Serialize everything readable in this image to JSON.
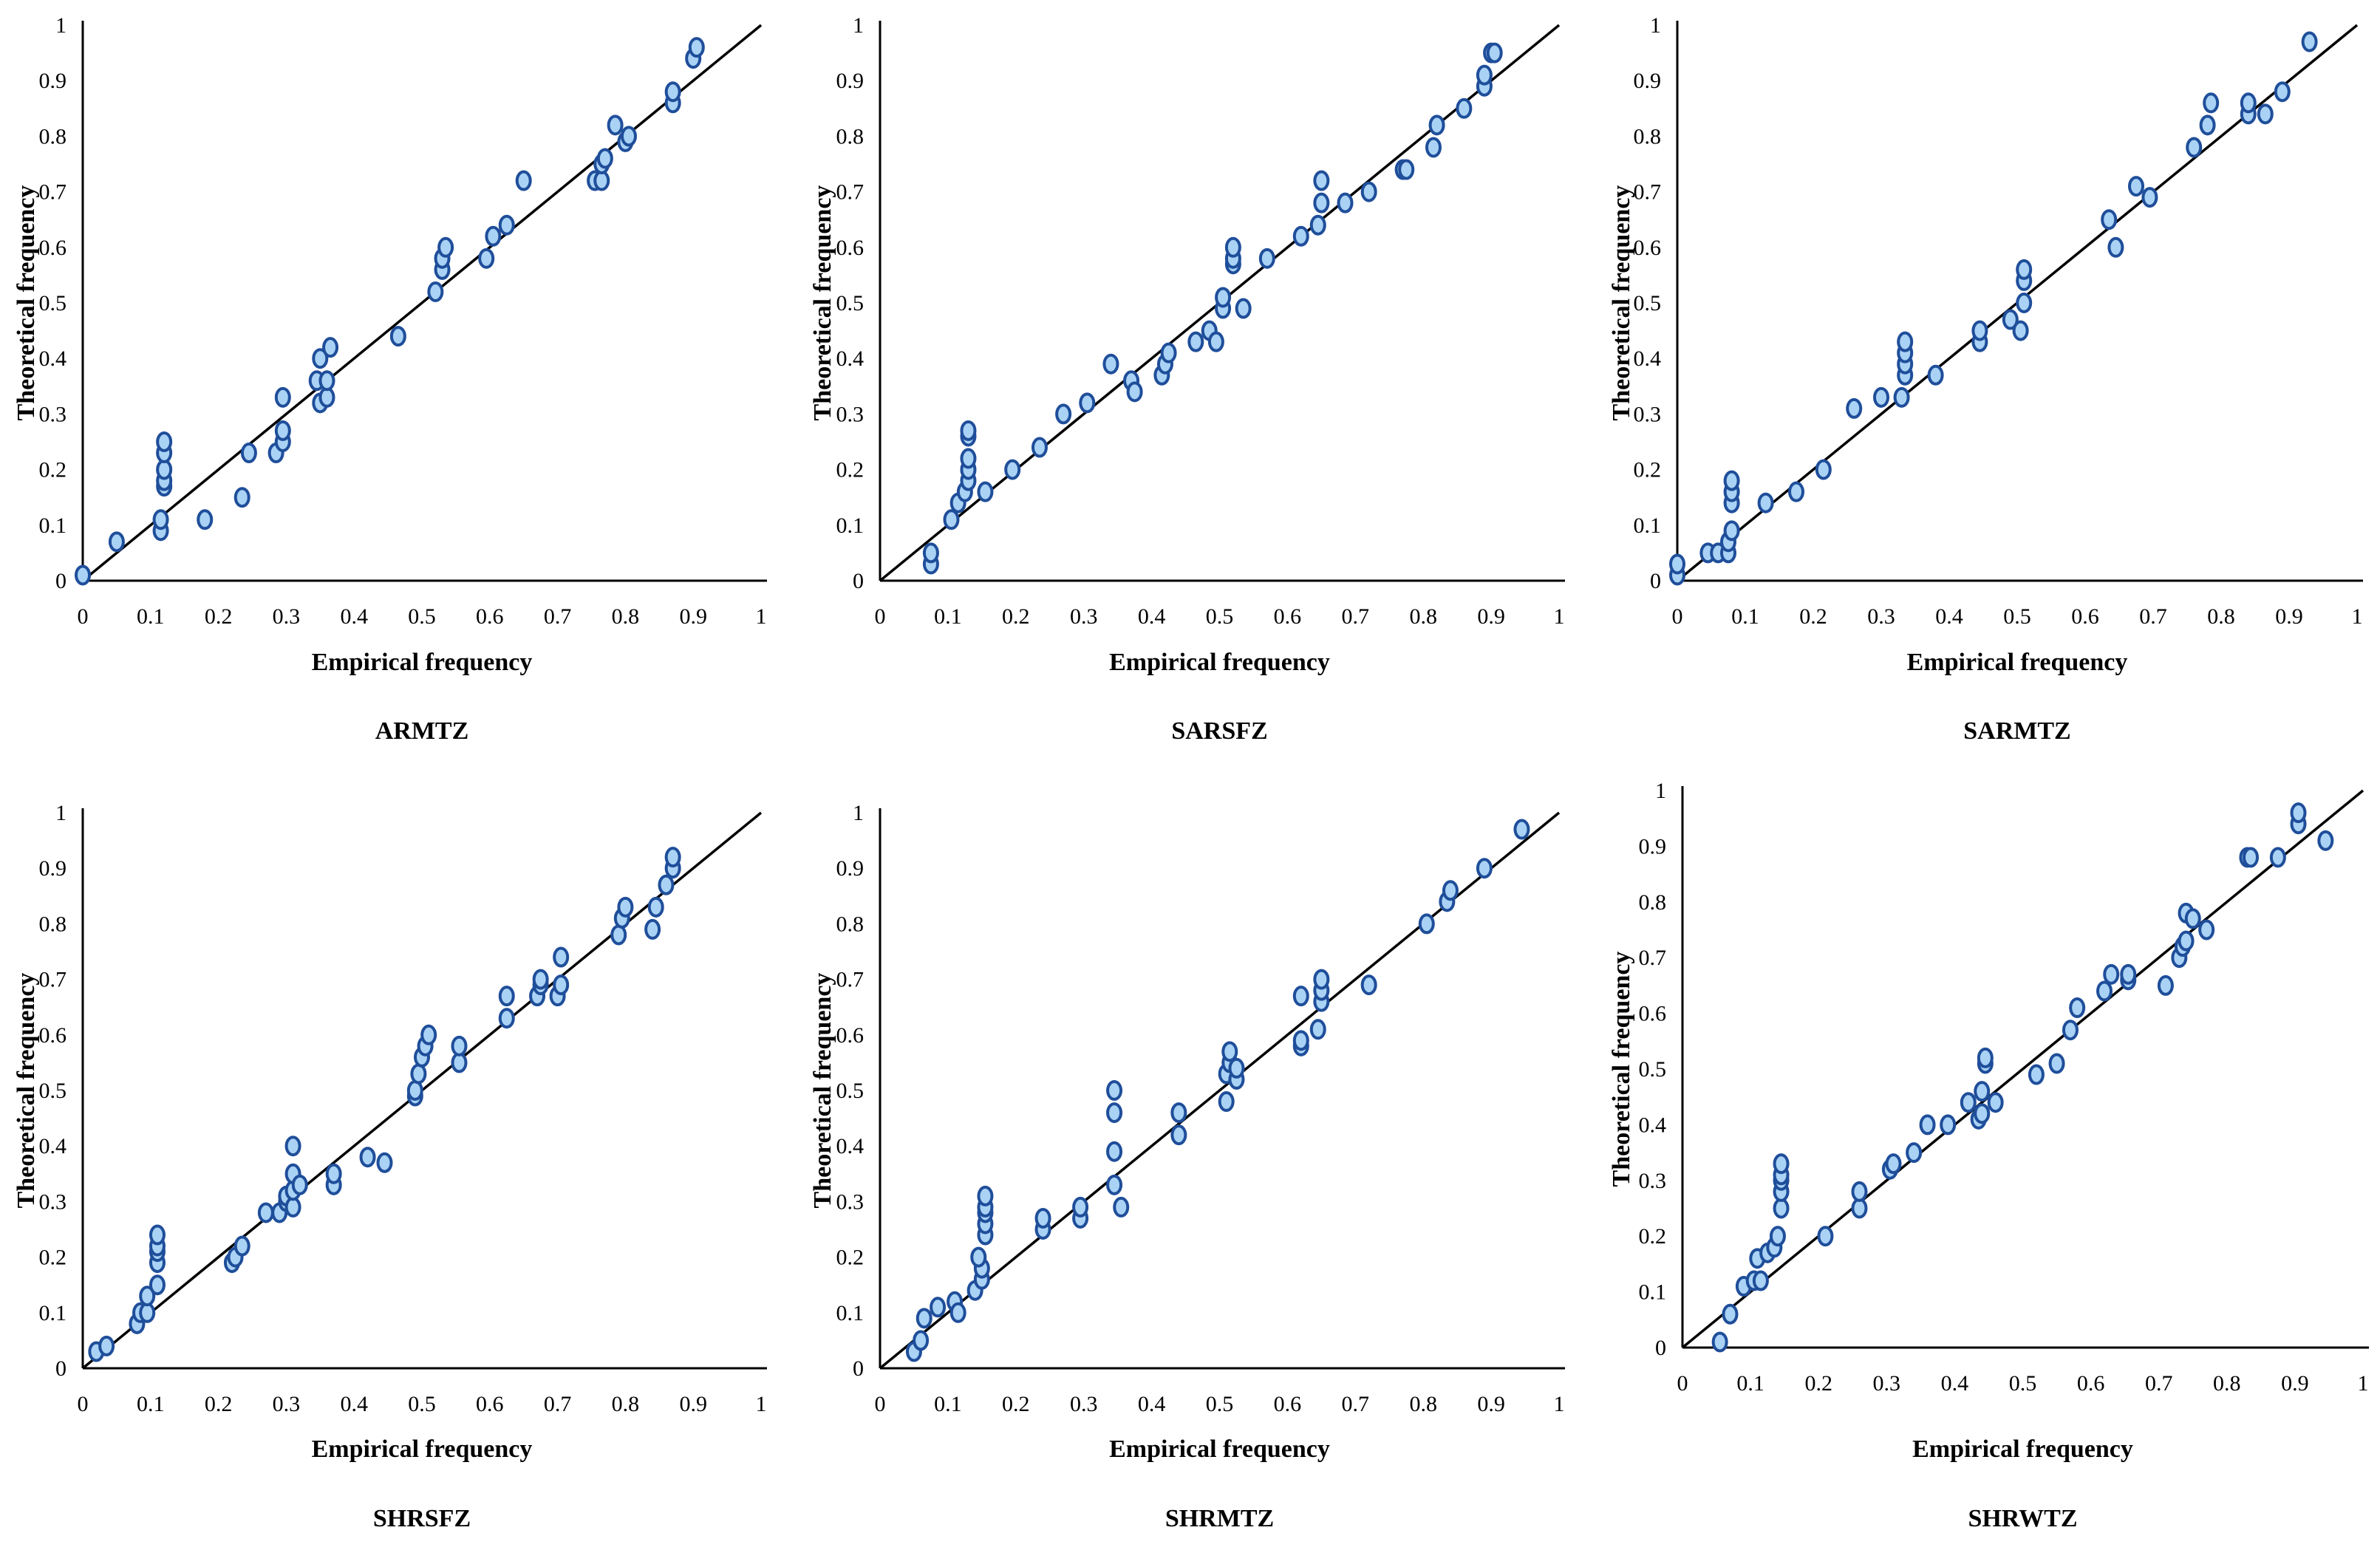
{
  "figure": {
    "shared_xlabel": "Empirical frequency",
    "shared_ylabel": "Theoretical frequency"
  },
  "chart_data": [
    {
      "type": "scatter",
      "title": "ARMTZ",
      "xlabel": "Empirical frequency",
      "ylabel": "Theoretical frequency",
      "xlim": [
        0,
        1
      ],
      "ylim": [
        0,
        1
      ],
      "xticks": [
        "0",
        "0.1",
        "0.2",
        "0.3",
        "0.4",
        "0.5",
        "0.6",
        "0.7",
        "0.8",
        "0.9",
        "1"
      ],
      "yticks": [
        "0",
        "0.1",
        "0.2",
        "0.3",
        "0.4",
        "0.5",
        "0.6",
        "0.7",
        "0.8",
        "0.9",
        "1"
      ],
      "reference_line": "y = x",
      "points": [
        [
          0.0,
          0.01
        ],
        [
          0.05,
          0.07
        ],
        [
          0.115,
          0.09
        ],
        [
          0.115,
          0.11
        ],
        [
          0.12,
          0.17
        ],
        [
          0.12,
          0.18
        ],
        [
          0.12,
          0.2
        ],
        [
          0.12,
          0.23
        ],
        [
          0.12,
          0.25
        ],
        [
          0.18,
          0.11
        ],
        [
          0.235,
          0.15
        ],
        [
          0.245,
          0.23
        ],
        [
          0.285,
          0.23
        ],
        [
          0.295,
          0.25
        ],
        [
          0.295,
          0.27
        ],
        [
          0.295,
          0.33
        ],
        [
          0.345,
          0.36
        ],
        [
          0.35,
          0.32
        ],
        [
          0.35,
          0.4
        ],
        [
          0.36,
          0.33
        ],
        [
          0.36,
          0.36
        ],
        [
          0.365,
          0.42
        ],
        [
          0.465,
          0.44
        ],
        [
          0.52,
          0.52
        ],
        [
          0.53,
          0.56
        ],
        [
          0.53,
          0.58
        ],
        [
          0.535,
          0.6
        ],
        [
          0.595,
          0.58
        ],
        [
          0.605,
          0.62
        ],
        [
          0.625,
          0.64
        ],
        [
          0.65,
          0.72
        ],
        [
          0.755,
          0.72
        ],
        [
          0.765,
          0.72
        ],
        [
          0.765,
          0.75
        ],
        [
          0.77,
          0.76
        ],
        [
          0.785,
          0.82
        ],
        [
          0.8,
          0.79
        ],
        [
          0.805,
          0.8
        ],
        [
          0.87,
          0.86
        ],
        [
          0.87,
          0.88
        ],
        [
          0.9,
          0.94
        ],
        [
          0.905,
          0.96
        ]
      ]
    },
    {
      "type": "scatter",
      "title": "SARSFZ",
      "xlabel": "Empirical frequency",
      "ylabel": "Theoretical frequency",
      "xlim": [
        0,
        1
      ],
      "ylim": [
        0,
        1
      ],
      "xticks": [
        "0",
        "0.1",
        "0.2",
        "0.3",
        "0.4",
        "0.5",
        "0.6",
        "0.7",
        "0.8",
        "0.9",
        "1"
      ],
      "yticks": [
        "0",
        "0.1",
        "0.2",
        "0.3",
        "0.4",
        "0.5",
        "0.6",
        "0.7",
        "0.8",
        "0.9",
        "1"
      ],
      "reference_line": "y = x",
      "points": [
        [
          0.075,
          0.03
        ],
        [
          0.075,
          0.05
        ],
        [
          0.105,
          0.11
        ],
        [
          0.115,
          0.14
        ],
        [
          0.125,
          0.16
        ],
        [
          0.13,
          0.18
        ],
        [
          0.13,
          0.2
        ],
        [
          0.13,
          0.22
        ],
        [
          0.13,
          0.26
        ],
        [
          0.13,
          0.27
        ],
        [
          0.155,
          0.16
        ],
        [
          0.195,
          0.2
        ],
        [
          0.235,
          0.24
        ],
        [
          0.27,
          0.3
        ],
        [
          0.305,
          0.32
        ],
        [
          0.34,
          0.39
        ],
        [
          0.37,
          0.36
        ],
        [
          0.375,
          0.34
        ],
        [
          0.415,
          0.37
        ],
        [
          0.42,
          0.39
        ],
        [
          0.425,
          0.41
        ],
        [
          0.465,
          0.43
        ],
        [
          0.485,
          0.45
        ],
        [
          0.495,
          0.43
        ],
        [
          0.505,
          0.49
        ],
        [
          0.505,
          0.51
        ],
        [
          0.52,
          0.57
        ],
        [
          0.52,
          0.58
        ],
        [
          0.52,
          0.6
        ],
        [
          0.535,
          0.49
        ],
        [
          0.57,
          0.58
        ],
        [
          0.62,
          0.62
        ],
        [
          0.645,
          0.64
        ],
        [
          0.65,
          0.68
        ],
        [
          0.65,
          0.72
        ],
        [
          0.685,
          0.68
        ],
        [
          0.72,
          0.7
        ],
        [
          0.77,
          0.74
        ],
        [
          0.775,
          0.74
        ],
        [
          0.815,
          0.78
        ],
        [
          0.82,
          0.82
        ],
        [
          0.86,
          0.85
        ],
        [
          0.89,
          0.89
        ],
        [
          0.89,
          0.91
        ],
        [
          0.9,
          0.95
        ],
        [
          0.905,
          0.95
        ]
      ]
    },
    {
      "type": "scatter",
      "title": "SARMTZ",
      "xlabel": "Empirical frequency",
      "ylabel": "Theoretical frequency",
      "xlim": [
        0,
        1
      ],
      "ylim": [
        0,
        1
      ],
      "xticks": [
        "0",
        "0.1",
        "0.2",
        "0.3",
        "0.4",
        "0.5",
        "0.6",
        "0.7",
        "0.8",
        "0.9",
        "1"
      ],
      "yticks": [
        "0",
        "0.1",
        "0.2",
        "0.3",
        "0.4",
        "0.5",
        "0.6",
        "0.7",
        "0.8",
        "0.9",
        "1"
      ],
      "reference_line": "y = x",
      "points": [
        [
          0.0,
          0.01
        ],
        [
          0.0,
          0.03
        ],
        [
          0.045,
          0.05
        ],
        [
          0.06,
          0.05
        ],
        [
          0.075,
          0.05
        ],
        [
          0.075,
          0.07
        ],
        [
          0.08,
          0.09
        ],
        [
          0.08,
          0.14
        ],
        [
          0.08,
          0.16
        ],
        [
          0.08,
          0.18
        ],
        [
          0.13,
          0.14
        ],
        [
          0.175,
          0.16
        ],
        [
          0.215,
          0.2
        ],
        [
          0.26,
          0.31
        ],
        [
          0.3,
          0.33
        ],
        [
          0.33,
          0.33
        ],
        [
          0.335,
          0.37
        ],
        [
          0.335,
          0.39
        ],
        [
          0.335,
          0.41
        ],
        [
          0.335,
          0.43
        ],
        [
          0.38,
          0.37
        ],
        [
          0.445,
          0.43
        ],
        [
          0.445,
          0.45
        ],
        [
          0.49,
          0.47
        ],
        [
          0.505,
          0.45
        ],
        [
          0.51,
          0.5
        ],
        [
          0.51,
          0.54
        ],
        [
          0.51,
          0.56
        ],
        [
          0.635,
          0.65
        ],
        [
          0.645,
          0.6
        ],
        [
          0.675,
          0.71
        ],
        [
          0.695,
          0.69
        ],
        [
          0.76,
          0.78
        ],
        [
          0.78,
          0.82
        ],
        [
          0.785,
          0.86
        ],
        [
          0.84,
          0.84
        ],
        [
          0.84,
          0.86
        ],
        [
          0.865,
          0.84
        ],
        [
          0.89,
          0.88
        ],
        [
          0.93,
          0.97
        ]
      ]
    },
    {
      "type": "scatter",
      "title": "SHRSFZ",
      "xlabel": "Empirical frequency",
      "ylabel": "Theoretical frequency",
      "xlim": [
        0,
        1
      ],
      "ylim": [
        0,
        1
      ],
      "xticks": [
        "0",
        "0.1",
        "0.2",
        "0.3",
        "0.4",
        "0.5",
        "0.6",
        "0.7",
        "0.8",
        "0.9",
        "1"
      ],
      "yticks": [
        "0",
        "0.1",
        "0.2",
        "0.3",
        "0.4",
        "0.5",
        "0.6",
        "0.7",
        "0.8",
        "0.9",
        "1"
      ],
      "reference_line": "y = x",
      "points": [
        [
          0.02,
          0.03
        ],
        [
          0.035,
          0.04
        ],
        [
          0.08,
          0.08
        ],
        [
          0.085,
          0.1
        ],
        [
          0.095,
          0.1
        ],
        [
          0.095,
          0.13
        ],
        [
          0.11,
          0.15
        ],
        [
          0.11,
          0.19
        ],
        [
          0.11,
          0.21
        ],
        [
          0.11,
          0.22
        ],
        [
          0.11,
          0.24
        ],
        [
          0.22,
          0.19
        ],
        [
          0.225,
          0.2
        ],
        [
          0.235,
          0.22
        ],
        [
          0.27,
          0.28
        ],
        [
          0.29,
          0.28
        ],
        [
          0.3,
          0.3
        ],
        [
          0.3,
          0.31
        ],
        [
          0.31,
          0.29
        ],
        [
          0.31,
          0.32
        ],
        [
          0.31,
          0.35
        ],
        [
          0.31,
          0.4
        ],
        [
          0.32,
          0.33
        ],
        [
          0.37,
          0.33
        ],
        [
          0.37,
          0.35
        ],
        [
          0.42,
          0.38
        ],
        [
          0.445,
          0.37
        ],
        [
          0.49,
          0.49
        ],
        [
          0.49,
          0.5
        ],
        [
          0.495,
          0.53
        ],
        [
          0.5,
          0.56
        ],
        [
          0.505,
          0.58
        ],
        [
          0.51,
          0.6
        ],
        [
          0.555,
          0.55
        ],
        [
          0.555,
          0.58
        ],
        [
          0.625,
          0.63
        ],
        [
          0.625,
          0.67
        ],
        [
          0.67,
          0.67
        ],
        [
          0.675,
          0.69
        ],
        [
          0.675,
          0.7
        ],
        [
          0.7,
          0.67
        ],
        [
          0.705,
          0.69
        ],
        [
          0.705,
          0.74
        ],
        [
          0.79,
          0.78
        ],
        [
          0.795,
          0.81
        ],
        [
          0.8,
          0.83
        ],
        [
          0.84,
          0.79
        ],
        [
          0.845,
          0.83
        ],
        [
          0.86,
          0.87
        ],
        [
          0.87,
          0.9
        ],
        [
          0.87,
          0.92
        ]
      ]
    },
    {
      "type": "scatter",
      "title": "SHRMTZ",
      "xlabel": "Empirical frequency",
      "ylabel": "Theoretical frequency",
      "xlim": [
        0,
        1
      ],
      "ylim": [
        0,
        1
      ],
      "xticks": [
        "0",
        "0.1",
        "0.2",
        "0.3",
        "0.4",
        "0.5",
        "0.6",
        "0.7",
        "0.8",
        "0.9",
        "1"
      ],
      "yticks": [
        "0",
        "0.1",
        "0.2",
        "0.3",
        "0.4",
        "0.5",
        "0.6",
        "0.7",
        "0.8",
        "0.9",
        "1"
      ],
      "reference_line": "y = x",
      "points": [
        [
          0.05,
          0.03
        ],
        [
          0.06,
          0.05
        ],
        [
          0.065,
          0.09
        ],
        [
          0.085,
          0.11
        ],
        [
          0.11,
          0.12
        ],
        [
          0.115,
          0.1
        ],
        [
          0.14,
          0.14
        ],
        [
          0.15,
          0.16
        ],
        [
          0.15,
          0.18
        ],
        [
          0.145,
          0.2
        ],
        [
          0.155,
          0.24
        ],
        [
          0.155,
          0.26
        ],
        [
          0.155,
          0.28
        ],
        [
          0.155,
          0.29
        ],
        [
          0.155,
          0.31
        ],
        [
          0.24,
          0.25
        ],
        [
          0.24,
          0.27
        ],
        [
          0.295,
          0.27
        ],
        [
          0.295,
          0.29
        ],
        [
          0.345,
          0.33
        ],
        [
          0.345,
          0.39
        ],
        [
          0.345,
          0.46
        ],
        [
          0.345,
          0.5
        ],
        [
          0.355,
          0.29
        ],
        [
          0.44,
          0.42
        ],
        [
          0.44,
          0.46
        ],
        [
          0.51,
          0.48
        ],
        [
          0.51,
          0.53
        ],
        [
          0.515,
          0.55
        ],
        [
          0.515,
          0.57
        ],
        [
          0.525,
          0.52
        ],
        [
          0.525,
          0.54
        ],
        [
          0.62,
          0.58
        ],
        [
          0.62,
          0.59
        ],
        [
          0.62,
          0.67
        ],
        [
          0.645,
          0.61
        ],
        [
          0.65,
          0.66
        ],
        [
          0.65,
          0.68
        ],
        [
          0.65,
          0.7
        ],
        [
          0.72,
          0.69
        ],
        [
          0.805,
          0.8
        ],
        [
          0.835,
          0.84
        ],
        [
          0.84,
          0.86
        ],
        [
          0.89,
          0.9
        ],
        [
          0.945,
          0.97
        ]
      ]
    },
    {
      "type": "scatter",
      "title": "SHRWTZ",
      "xlabel": "Empirical frequency",
      "ylabel": "Theoretical frequency",
      "xlim": [
        0,
        1
      ],
      "ylim": [
        0,
        1
      ],
      "xticks": [
        "0",
        "0.1",
        "0.2",
        "0.3",
        "0.4",
        "0.5",
        "0.6",
        "0.7",
        "0.8",
        "0.9",
        "1"
      ],
      "yticks": [
        "0",
        "0.1",
        "0.2",
        "0.3",
        "0.4",
        "0.5",
        "0.6",
        "0.7",
        "0.8",
        "0.9",
        "1"
      ],
      "reference_line": "y = x",
      "points": [
        [
          0.055,
          0.01
        ],
        [
          0.07,
          0.06
        ],
        [
          0.09,
          0.11
        ],
        [
          0.105,
          0.12
        ],
        [
          0.115,
          0.12
        ],
        [
          0.11,
          0.16
        ],
        [
          0.125,
          0.17
        ],
        [
          0.135,
          0.18
        ],
        [
          0.14,
          0.2
        ],
        [
          0.145,
          0.25
        ],
        [
          0.145,
          0.28
        ],
        [
          0.145,
          0.3
        ],
        [
          0.145,
          0.31
        ],
        [
          0.145,
          0.33
        ],
        [
          0.21,
          0.2
        ],
        [
          0.26,
          0.25
        ],
        [
          0.26,
          0.28
        ],
        [
          0.305,
          0.32
        ],
        [
          0.31,
          0.33
        ],
        [
          0.34,
          0.35
        ],
        [
          0.36,
          0.4
        ],
        [
          0.39,
          0.4
        ],
        [
          0.42,
          0.44
        ],
        [
          0.435,
          0.41
        ],
        [
          0.44,
          0.42
        ],
        [
          0.44,
          0.46
        ],
        [
          0.445,
          0.51
        ],
        [
          0.445,
          0.52
        ],
        [
          0.46,
          0.44
        ],
        [
          0.52,
          0.49
        ],
        [
          0.55,
          0.51
        ],
        [
          0.57,
          0.57
        ],
        [
          0.58,
          0.61
        ],
        [
          0.62,
          0.64
        ],
        [
          0.63,
          0.67
        ],
        [
          0.655,
          0.66
        ],
        [
          0.655,
          0.67
        ],
        [
          0.71,
          0.65
        ],
        [
          0.73,
          0.7
        ],
        [
          0.735,
          0.72
        ],
        [
          0.74,
          0.73
        ],
        [
          0.74,
          0.78
        ],
        [
          0.75,
          0.77
        ],
        [
          0.77,
          0.75
        ],
        [
          0.83,
          0.88
        ],
        [
          0.835,
          0.88
        ],
        [
          0.875,
          0.88
        ],
        [
          0.905,
          0.94
        ],
        [
          0.905,
          0.96
        ],
        [
          0.945,
          0.91
        ]
      ]
    }
  ]
}
